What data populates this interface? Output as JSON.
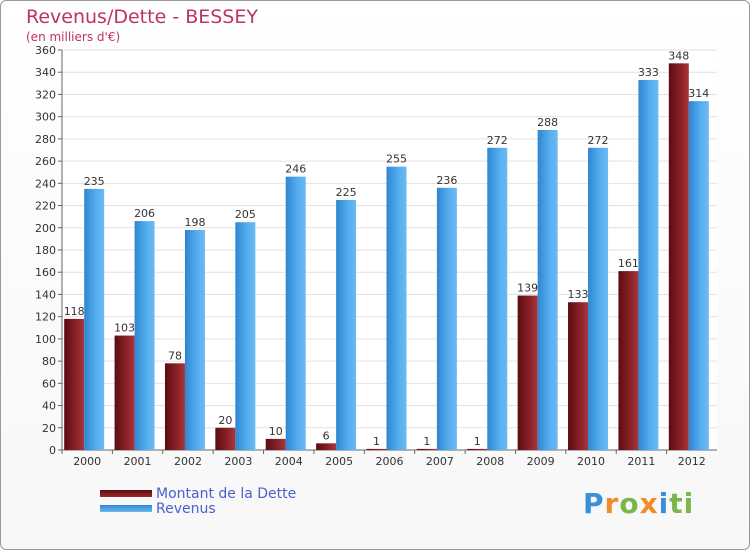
{
  "chart_data": {
    "type": "bar",
    "title": "Revenus/Dette - BESSEY",
    "subtitle": "(en milliers d'€)",
    "categories": [
      "2000",
      "2001",
      "2002",
      "2003",
      "2004",
      "2005",
      "2006",
      "2007",
      "2008",
      "2009",
      "2010",
      "2011",
      "2012"
    ],
    "series": [
      {
        "name": "Montant de la Dette",
        "values": [
          118,
          103,
          78,
          20,
          10,
          6,
          1,
          1,
          1,
          139,
          133,
          161,
          348
        ],
        "color": "#7a1a1e"
      },
      {
        "name": "Revenus",
        "values": [
          235,
          206,
          198,
          205,
          246,
          225,
          255,
          236,
          272,
          288,
          272,
          333,
          314
        ],
        "color": "#4da6e8"
      }
    ],
    "ylim": [
      0,
      360
    ],
    "yticks": [
      0,
      20,
      40,
      60,
      80,
      100,
      120,
      140,
      160,
      180,
      200,
      220,
      240,
      260,
      280,
      300,
      320,
      340,
      360
    ],
    "grid": true,
    "legend_position": "bottom-left"
  },
  "brand": {
    "letters": [
      "P",
      "r",
      "o",
      "x",
      "i",
      "ti"
    ],
    "icon": "proxiti-logo"
  }
}
